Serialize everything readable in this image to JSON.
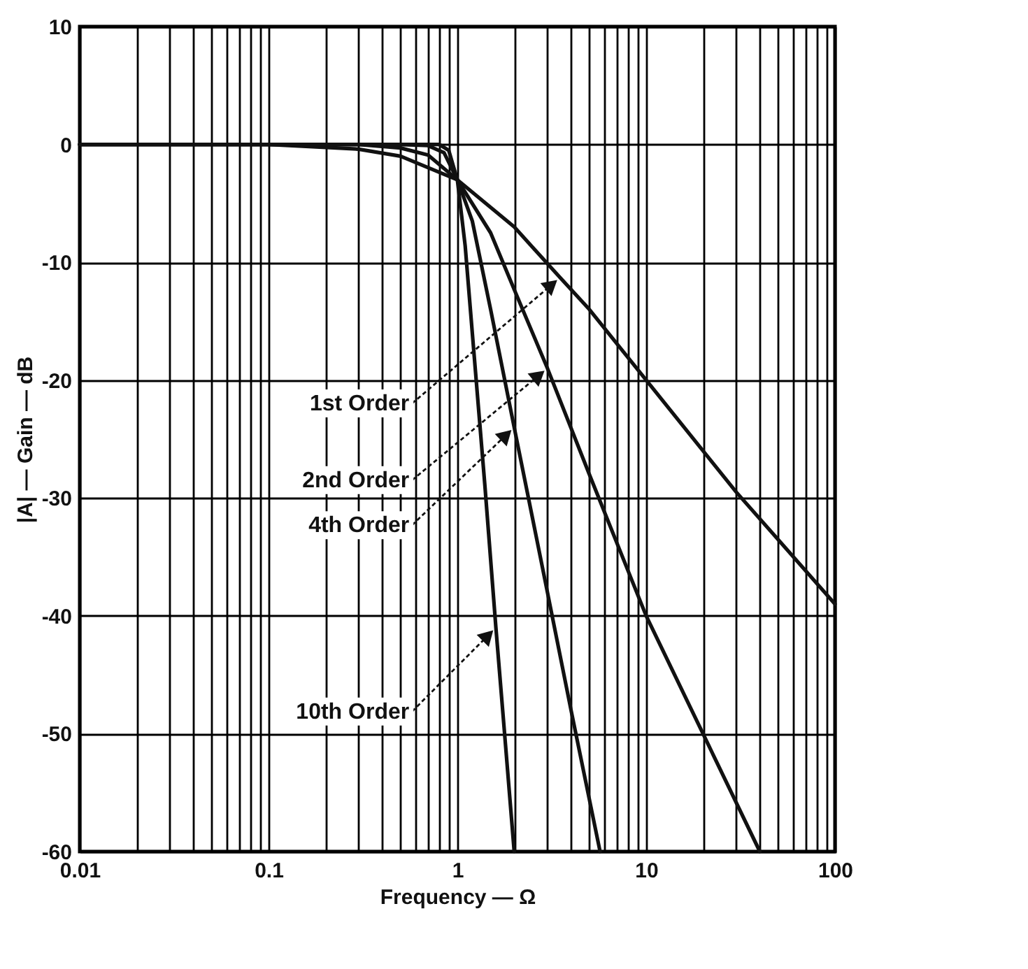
{
  "chart_data": {
    "type": "line",
    "xlabel": "Frequency — Ω",
    "ylabel": "|A| — Gain — dB",
    "log": "x",
    "grid": true,
    "line_style": "solid",
    "marker": "none",
    "xlim": [
      0.01,
      100
    ],
    "xticks": [
      0.01,
      0.1,
      1,
      10,
      100
    ],
    "ylim": [
      -60,
      10
    ],
    "yticks": [
      -60,
      -50,
      -40,
      -30,
      -20,
      -10,
      0,
      10
    ],
    "series": [
      {
        "color": "#111111",
        "x": [
          0.01,
          0.1,
          0.3,
          0.5,
          1,
          2,
          3.5,
          5,
          10,
          30,
          100
        ],
        "values": [
          0,
          0,
          -0.4,
          -1,
          -3,
          -7,
          -11.3,
          -14,
          -20,
          -29.5,
          -39
        ]
      },
      {
        "color": "#111111",
        "x": [
          0.01,
          0.3,
          0.5,
          0.7,
          1,
          1.5,
          2,
          3,
          5,
          10,
          20,
          40
        ],
        "values": [
          0,
          0,
          -0.3,
          -0.9,
          -3,
          -7.5,
          -12.3,
          -19,
          -28,
          -40,
          -50,
          -60
        ]
      },
      {
        "color": "#111111",
        "x": [
          0.01,
          0.5,
          0.7,
          0.85,
          1,
          1.2,
          1.5,
          2,
          3,
          4,
          5.7
        ],
        "values": [
          0,
          0,
          -0.1,
          -0.7,
          -3,
          -6.5,
          -14,
          -24,
          -38,
          -48,
          -60
        ]
      },
      {
        "color": "#111111",
        "x": [
          0.01,
          0.8,
          0.9,
          1,
          1.1,
          1.2,
          1.4,
          1.6,
          1.8,
          2
        ],
        "values": [
          0,
          0,
          -0.5,
          -3,
          -8.6,
          -16,
          -29,
          -41,
          -51,
          -60
        ]
      }
    ],
    "annotations": [
      {
        "text": "1st Order",
        "x": 3.5,
        "y": -11.3
      },
      {
        "text": "2nd Order",
        "x": 3,
        "y": -19
      },
      {
        "text": "4th Order",
        "x": 2,
        "y": -24
      },
      {
        "text": "10th Order",
        "x": 1.6,
        "y": -41
      }
    ]
  }
}
